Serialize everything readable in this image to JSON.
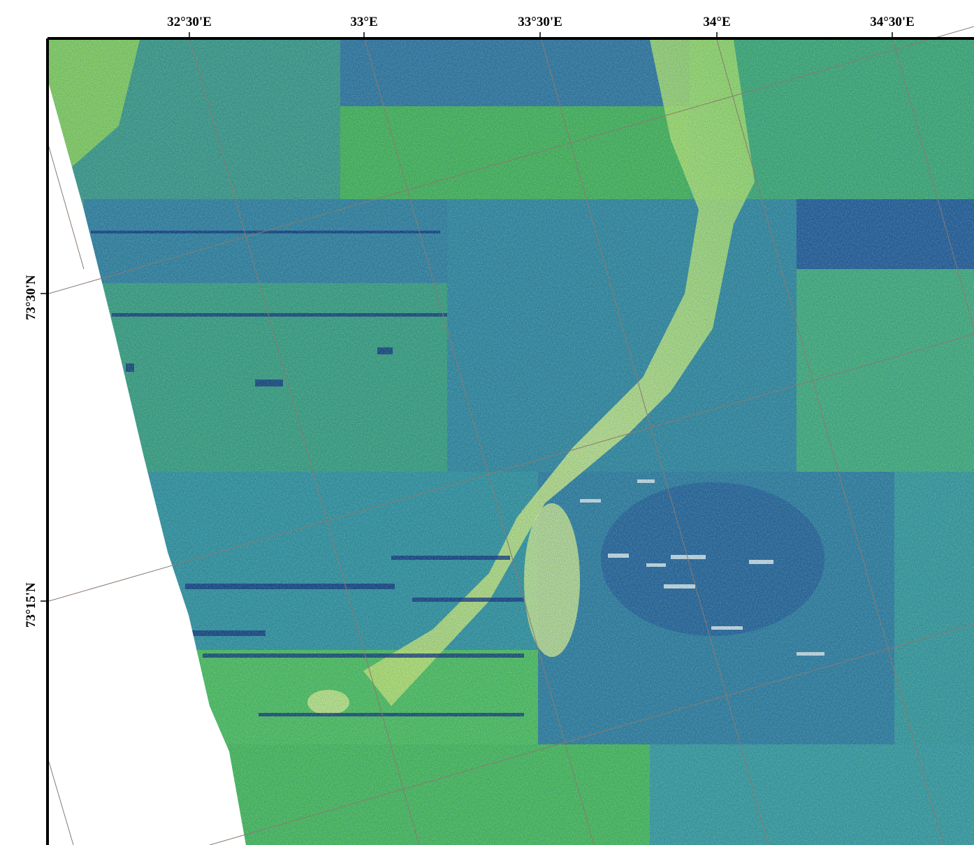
{
  "map": {
    "type": "sonar-backscatter-mosaic",
    "projection": "oblique-graticule",
    "colormap": [
      "#2a3d8a",
      "#3f6fa6",
      "#3a9fa0",
      "#44c85a",
      "#c9f25c",
      "#f4ff8a"
    ],
    "nodata_color": "#ffffff"
  },
  "graticule": {
    "longitude_labels": [
      "32°30'E",
      "33°E",
      "33°30'E",
      "34°E",
      "34°30'E"
    ],
    "latitude_labels": [
      "73°30'N",
      "73°15'N"
    ],
    "line_color": "#8a7a70"
  }
}
